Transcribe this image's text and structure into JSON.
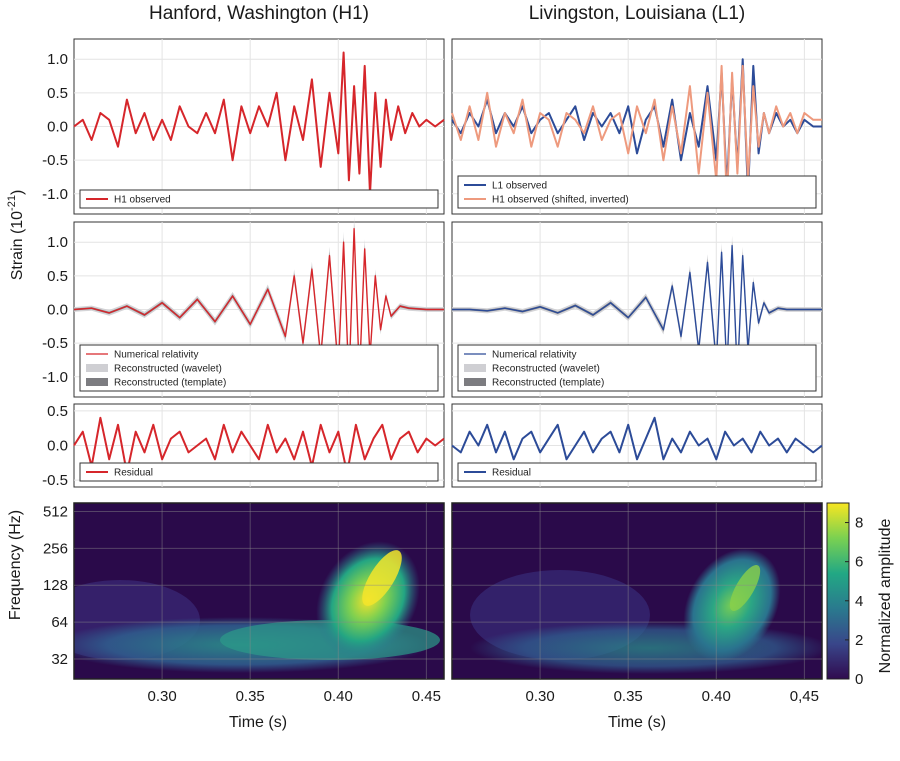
{
  "titles": {
    "left": "Hanford, Washington (H1)",
    "right": "Livingston, Louisiana (L1)"
  },
  "labels": {
    "strain_main": "Strain (10",
    "strain_exp": "-21",
    "strain_close": ")",
    "frequency": "Frequency (Hz)",
    "time_left": "Time (s)",
    "time_right": "Time (s)",
    "colorbar": "Normalized amplitude"
  },
  "colors": {
    "h1": "#d6262b",
    "l1": "#2c4b98",
    "h1_shifted": "#ee9a7e",
    "band_light": "#cfcfd3",
    "band_dark": "#7c7c80"
  },
  "chart_data": [
    {
      "type": "line",
      "panel": "top-left",
      "ylim": [
        -1.3,
        1.3
      ],
      "yticks": [
        "1.0",
        "0.5",
        "0.0",
        "-0.5",
        "-1.0"
      ],
      "xlim": [
        0.25,
        0.46
      ],
      "legend": {
        "position": "bottom",
        "entries": [
          "H1 observed"
        ]
      },
      "series": [
        {
          "name": "H1 observed",
          "x": [
            0.25,
            0.255,
            0.26,
            0.265,
            0.27,
            0.275,
            0.28,
            0.285,
            0.29,
            0.295,
            0.3,
            0.305,
            0.31,
            0.315,
            0.32,
            0.325,
            0.33,
            0.335,
            0.34,
            0.345,
            0.35,
            0.355,
            0.36,
            0.365,
            0.37,
            0.375,
            0.38,
            0.385,
            0.39,
            0.395,
            0.4,
            0.403,
            0.406,
            0.409,
            0.412,
            0.415,
            0.418,
            0.421,
            0.424,
            0.427,
            0.43,
            0.434,
            0.438,
            0.442,
            0.446,
            0.45,
            0.455,
            0.46
          ],
          "y": [
            0.0,
            0.1,
            -0.2,
            0.2,
            0.1,
            -0.3,
            0.4,
            -0.1,
            0.2,
            -0.2,
            0.1,
            -0.2,
            0.3,
            0.0,
            -0.1,
            0.2,
            -0.1,
            0.4,
            -0.5,
            0.3,
            -0.1,
            0.3,
            0.0,
            0.5,
            -0.5,
            0.3,
            -0.2,
            0.7,
            -0.6,
            0.5,
            -0.4,
            1.1,
            -0.8,
            0.6,
            -0.7,
            0.9,
            -1.0,
            0.5,
            -0.6,
            0.4,
            -0.2,
            0.3,
            -0.1,
            0.2,
            0.0,
            0.1,
            0.0,
            0.1
          ]
        }
      ]
    },
    {
      "type": "line",
      "panel": "top-right",
      "ylim": [
        -1.3,
        1.3
      ],
      "xlim": [
        0.25,
        0.46
      ],
      "legend": {
        "position": "bottom",
        "entries": [
          "L1 observed",
          "H1 observed (shifted, inverted)"
        ]
      },
      "series": [
        {
          "name": "L1 observed",
          "x": [
            0.25,
            0.255,
            0.26,
            0.265,
            0.27,
            0.275,
            0.28,
            0.285,
            0.29,
            0.295,
            0.3,
            0.305,
            0.31,
            0.315,
            0.32,
            0.325,
            0.33,
            0.335,
            0.34,
            0.345,
            0.35,
            0.355,
            0.36,
            0.365,
            0.37,
            0.375,
            0.38,
            0.385,
            0.39,
            0.395,
            0.4,
            0.403,
            0.406,
            0.409,
            0.412,
            0.415,
            0.418,
            0.421,
            0.424,
            0.427,
            0.43,
            0.434,
            0.438,
            0.442,
            0.446,
            0.45,
            0.455,
            0.46
          ],
          "y": [
            0.1,
            -0.1,
            0.2,
            0.0,
            0.4,
            -0.1,
            0.2,
            0.0,
            0.3,
            -0.1,
            0.1,
            0.2,
            -0.1,
            0.1,
            0.3,
            -0.2,
            0.2,
            0.0,
            0.2,
            -0.1,
            0.3,
            -0.4,
            0.1,
            0.3,
            -0.3,
            0.4,
            -0.5,
            0.2,
            -0.3,
            0.6,
            -0.5,
            0.8,
            -0.9,
            0.7,
            -0.6,
            1.0,
            -1.0,
            0.9,
            -0.4,
            0.2,
            -0.1,
            0.2,
            0.0,
            0.1,
            -0.1,
            0.1,
            0.0,
            0.0
          ]
        },
        {
          "name": "H1 observed (shifted, inverted)",
          "x": [
            0.25,
            0.255,
            0.26,
            0.265,
            0.27,
            0.275,
            0.28,
            0.285,
            0.29,
            0.295,
            0.3,
            0.305,
            0.31,
            0.315,
            0.32,
            0.325,
            0.33,
            0.335,
            0.34,
            0.345,
            0.35,
            0.355,
            0.36,
            0.365,
            0.37,
            0.375,
            0.38,
            0.385,
            0.39,
            0.395,
            0.4,
            0.403,
            0.406,
            0.409,
            0.412,
            0.415,
            0.418,
            0.421,
            0.424,
            0.427,
            0.43,
            0.434,
            0.438,
            0.442,
            0.446,
            0.45,
            0.455,
            0.46
          ],
          "y": [
            0.2,
            -0.2,
            0.3,
            -0.2,
            0.5,
            -0.3,
            0.2,
            -0.1,
            0.4,
            -0.3,
            0.2,
            0.1,
            -0.3,
            0.2,
            0.1,
            -0.1,
            0.3,
            -0.2,
            0.1,
            0.2,
            -0.4,
            0.3,
            -0.1,
            0.4,
            -0.5,
            0.3,
            -0.4,
            0.6,
            -0.7,
            0.5,
            -0.8,
            0.9,
            -1.1,
            0.8,
            -0.7,
            0.9,
            -0.8,
            0.6,
            -0.3,
            0.2,
            -0.1,
            0.3,
            0.0,
            0.2,
            -0.1,
            0.2,
            0.1,
            0.1
          ]
        }
      ]
    },
    {
      "type": "line",
      "panel": "middle-left",
      "ylim": [
        -1.3,
        1.3
      ],
      "yticks": [
        "1.0",
        "0.5",
        "0.0",
        "-0.5",
        "-1.0"
      ],
      "xlim": [
        0.25,
        0.46
      ],
      "legend": {
        "position": "bottom",
        "entries": [
          "Numerical relativity",
          "Reconstructed (wavelet)",
          "Reconstructed (template)"
        ]
      },
      "series": [
        {
          "name": "Numerical relativity",
          "x": [
            0.25,
            0.26,
            0.27,
            0.28,
            0.29,
            0.3,
            0.31,
            0.32,
            0.33,
            0.34,
            0.35,
            0.36,
            0.37,
            0.375,
            0.38,
            0.385,
            0.39,
            0.395,
            0.4,
            0.403,
            0.406,
            0.409,
            0.412,
            0.415,
            0.418,
            0.421,
            0.424,
            0.427,
            0.43,
            0.435,
            0.44,
            0.45,
            0.46
          ],
          "y": [
            0.0,
            0.02,
            -0.05,
            0.05,
            -0.08,
            0.1,
            -0.12,
            0.15,
            -0.18,
            0.2,
            -0.22,
            0.3,
            -0.4,
            0.5,
            -0.5,
            0.6,
            -0.7,
            0.8,
            -0.9,
            1.0,
            -1.1,
            1.2,
            -1.0,
            0.9,
            -0.7,
            0.5,
            -0.3,
            0.2,
            -0.1,
            0.05,
            0.02,
            0.0,
            0.0
          ]
        }
      ]
    },
    {
      "type": "line",
      "panel": "middle-right",
      "ylim": [
        -1.3,
        1.3
      ],
      "xlim": [
        0.25,
        0.46
      ],
      "legend": {
        "position": "bottom",
        "entries": [
          "Numerical relativity",
          "Reconstructed (wavelet)",
          "Reconstructed (template)"
        ]
      },
      "series": [
        {
          "name": "Numerical relativity",
          "x": [
            0.25,
            0.26,
            0.27,
            0.28,
            0.29,
            0.3,
            0.31,
            0.32,
            0.33,
            0.34,
            0.35,
            0.36,
            0.37,
            0.375,
            0.38,
            0.385,
            0.39,
            0.395,
            0.4,
            0.403,
            0.406,
            0.409,
            0.412,
            0.415,
            0.418,
            0.421,
            0.424,
            0.427,
            0.43,
            0.435,
            0.44,
            0.45,
            0.46
          ],
          "y": [
            0.0,
            0.0,
            -0.02,
            0.02,
            -0.03,
            0.04,
            -0.05,
            0.06,
            -0.08,
            0.1,
            -0.12,
            0.18,
            -0.3,
            0.35,
            -0.4,
            0.55,
            -0.6,
            0.7,
            -0.8,
            0.85,
            -0.9,
            0.95,
            -1.0,
            0.8,
            -0.6,
            0.4,
            -0.2,
            0.1,
            -0.05,
            0.02,
            0.0,
            0.0,
            0.0
          ]
        }
      ]
    },
    {
      "type": "line",
      "panel": "residual-left",
      "ylim": [
        -0.6,
        0.6
      ],
      "yticks": [
        "0.5",
        "0.0",
        "-0.5"
      ],
      "xlim": [
        0.25,
        0.46
      ],
      "legend": {
        "position": "bottom",
        "entries": [
          "Residual"
        ]
      },
      "series": [
        {
          "name": "Residual",
          "x": [
            0.25,
            0.255,
            0.26,
            0.265,
            0.27,
            0.275,
            0.28,
            0.285,
            0.29,
            0.295,
            0.3,
            0.305,
            0.31,
            0.315,
            0.32,
            0.325,
            0.33,
            0.335,
            0.34,
            0.345,
            0.35,
            0.355,
            0.36,
            0.365,
            0.37,
            0.375,
            0.38,
            0.385,
            0.39,
            0.395,
            0.4,
            0.405,
            0.41,
            0.415,
            0.42,
            0.425,
            0.43,
            0.435,
            0.44,
            0.445,
            0.45,
            0.455,
            0.46
          ],
          "y": [
            0.0,
            0.2,
            -0.3,
            0.4,
            -0.2,
            0.3,
            -0.4,
            0.2,
            -0.1,
            0.3,
            -0.2,
            0.1,
            0.2,
            -0.1,
            0.0,
            0.1,
            -0.2,
            0.3,
            -0.1,
            0.2,
            0.0,
            -0.2,
            0.3,
            -0.1,
            0.1,
            -0.2,
            0.2,
            -0.3,
            0.3,
            -0.1,
            0.2,
            -0.4,
            0.3,
            -0.2,
            0.1,
            0.3,
            -0.2,
            0.1,
            0.2,
            -0.1,
            0.1,
            0.0,
            0.1
          ]
        }
      ]
    },
    {
      "type": "line",
      "panel": "residual-right",
      "ylim": [
        -0.6,
        0.6
      ],
      "xlim": [
        0.25,
        0.46
      ],
      "legend": {
        "position": "bottom",
        "entries": [
          "Residual"
        ]
      },
      "series": [
        {
          "name": "Residual",
          "x": [
            0.25,
            0.255,
            0.26,
            0.265,
            0.27,
            0.275,
            0.28,
            0.285,
            0.29,
            0.295,
            0.3,
            0.305,
            0.31,
            0.315,
            0.32,
            0.325,
            0.33,
            0.335,
            0.34,
            0.345,
            0.35,
            0.355,
            0.36,
            0.365,
            0.37,
            0.375,
            0.38,
            0.385,
            0.39,
            0.395,
            0.4,
            0.405,
            0.41,
            0.415,
            0.42,
            0.425,
            0.43,
            0.435,
            0.44,
            0.445,
            0.45,
            0.455,
            0.46
          ],
          "y": [
            0.0,
            -0.1,
            0.2,
            0.0,
            0.3,
            -0.1,
            0.2,
            -0.2,
            0.1,
            0.2,
            -0.1,
            0.1,
            0.3,
            -0.2,
            0.0,
            0.2,
            -0.1,
            0.1,
            0.2,
            -0.1,
            0.3,
            -0.2,
            0.1,
            0.4,
            -0.2,
            0.1,
            -0.1,
            0.2,
            0.0,
            0.1,
            -0.2,
            0.2,
            0.0,
            0.1,
            -0.1,
            0.2,
            0.0,
            0.1,
            -0.1,
            0.1,
            0.0,
            -0.1,
            0.0
          ]
        }
      ]
    },
    {
      "type": "heatmap",
      "panel": "spectrogram-left",
      "xlim": [
        0.25,
        0.46
      ],
      "xticks": [
        "0.30",
        "0.35",
        "0.40",
        "0.45"
      ],
      "yticks": [
        "512",
        "256",
        "128",
        "64",
        "32"
      ],
      "ylabel": "Frequency (Hz)",
      "xlabel": "Time (s)"
    },
    {
      "type": "heatmap",
      "panel": "spectrogram-right",
      "xlim": [
        0.25,
        0.46
      ],
      "xticks": [
        "0.30",
        "0.35",
        "0.40",
        "0,45"
      ],
      "xlabel": "Time (s)",
      "colorbar": {
        "label": "Normalized amplitude",
        "ticks": [
          "8",
          "6",
          "4",
          "2",
          "0"
        ],
        "range": [
          0,
          9
        ]
      }
    }
  ]
}
